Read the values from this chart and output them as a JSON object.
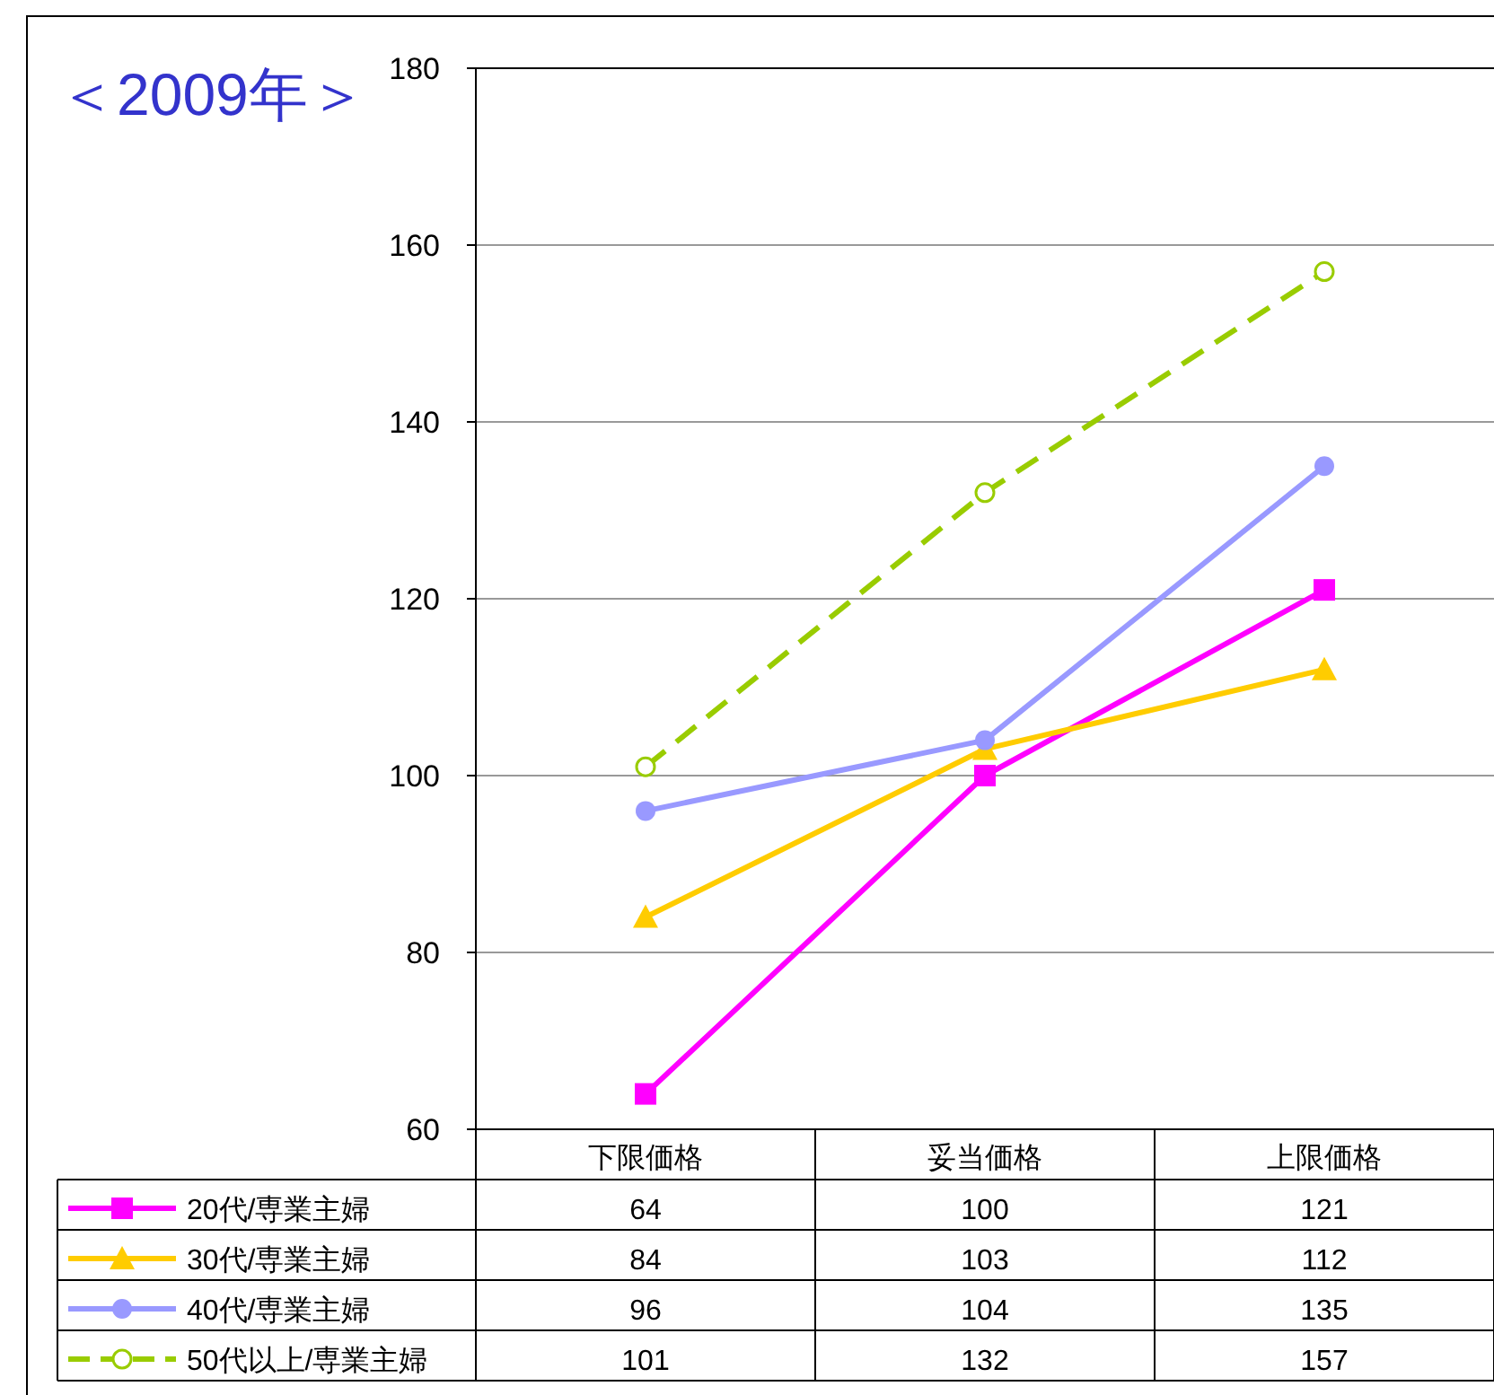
{
  "chart_data": {
    "type": "line",
    "title": "＜2009年＞",
    "categories": [
      "下限価格",
      "妥当価格",
      "上限価格"
    ],
    "series": [
      {
        "name": "20代/専業主婦",
        "color": "#ff00ff",
        "marker": "square",
        "line_style": "solid",
        "values": [
          64,
          100,
          121
        ]
      },
      {
        "name": "30代/専業主婦",
        "color": "#ffcc00",
        "marker": "triangle",
        "line_style": "solid",
        "values": [
          84,
          103,
          112
        ]
      },
      {
        "name": "40代/専業主婦",
        "color": "#9999ff",
        "marker": "circle",
        "line_style": "solid",
        "values": [
          96,
          104,
          135
        ]
      },
      {
        "name": "50代以上/専業主婦",
        "color": "#99cc00",
        "marker": "circle_open",
        "line_style": "dashed",
        "values": [
          101,
          132,
          157
        ]
      }
    ],
    "ylim": [
      60,
      180
    ],
    "yticks": [
      60,
      80,
      100,
      120,
      140,
      160,
      180
    ],
    "grid": "y",
    "legend": "bottom",
    "data_labels": true
  }
}
